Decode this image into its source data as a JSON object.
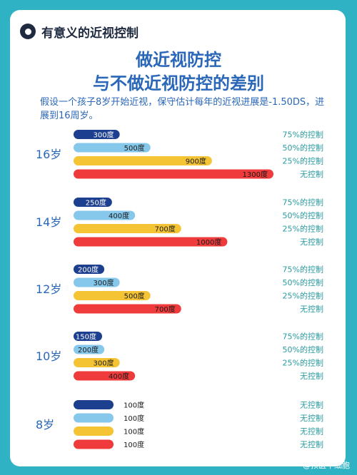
{
  "brand": {
    "name": "有意义的近视控制",
    "icon": "eye-icon"
  },
  "title": {
    "line1": "做近视防控",
    "line2": "与不做近视防控的差别"
  },
  "description": "假设一个孩子8岁开始近视，保守估计每年的近视进展是-1.50DS，进展到16周岁。",
  "colors": {
    "background": "#2fb3c4",
    "title": "#2a67b8",
    "group_label": "#2a67b8",
    "right_label": "#2a9a9f",
    "series": [
      "#1d3f8f",
      "#86c8ec",
      "#f4c434",
      "#ef3b3b"
    ]
  },
  "chart_data": {
    "type": "bar",
    "orientation": "horizontal",
    "unit": "度",
    "series": [
      {
        "name": "75%的控制"
      },
      {
        "name": "50%的控制"
      },
      {
        "name": "25%的控制"
      },
      {
        "name": "无控制"
      }
    ],
    "groups": [
      {
        "label": "16岁",
        "values": [
          300,
          500,
          900,
          1300
        ],
        "labels": [
          "75%的控制",
          "50%的控制",
          "25%的控制",
          "无控制"
        ]
      },
      {
        "label": "14岁",
        "values": [
          250,
          400,
          700,
          1000
        ],
        "labels": [
          "75%的控制",
          "50%的控制",
          "25%的控制",
          "无控制"
        ]
      },
      {
        "label": "12岁",
        "values": [
          200,
          300,
          500,
          700
        ],
        "labels": [
          "75%的控制",
          "50%的控制",
          "25%的控制",
          "无控制"
        ]
      },
      {
        "label": "10岁",
        "values": [
          150,
          200,
          300,
          400
        ],
        "labels": [
          "75%的控制",
          "50%的控制",
          "25%的控制",
          "无控制"
        ]
      },
      {
        "label": "8岁",
        "values": [
          100,
          100,
          100,
          100
        ],
        "labels": [
          "无控制",
          "无控制",
          "无控制",
          "无控制"
        ]
      }
    ]
  },
  "footer": "@预医干细胞"
}
